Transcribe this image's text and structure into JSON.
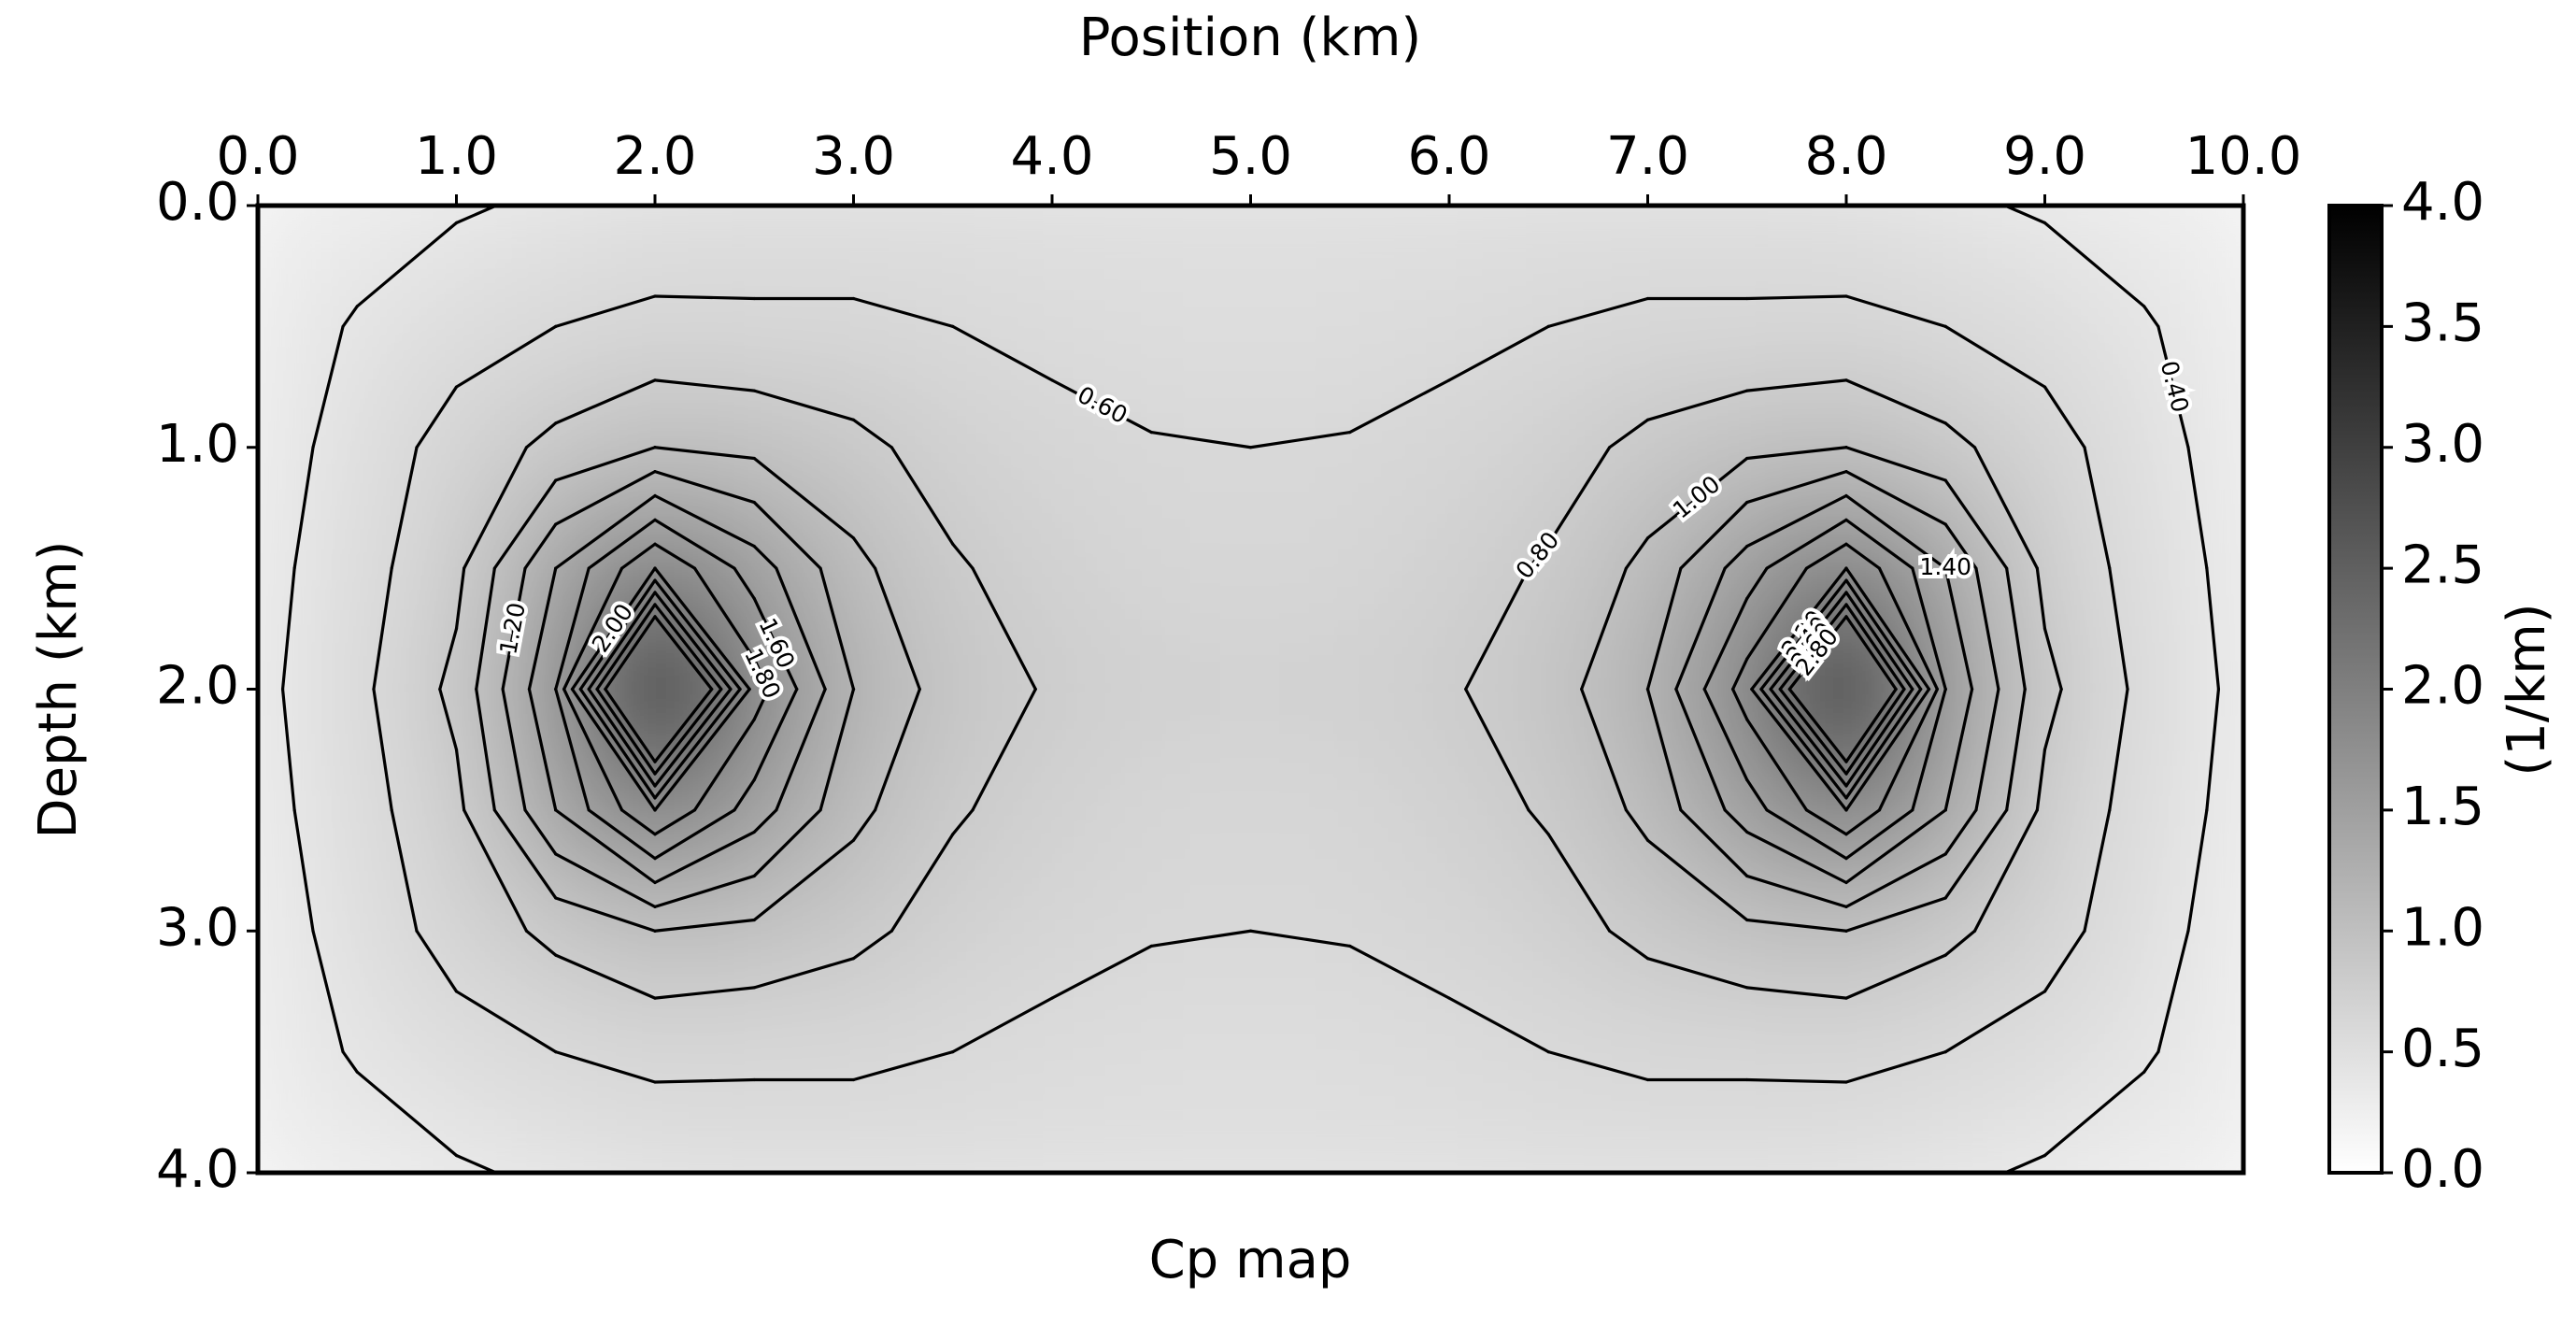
{
  "chart_data": {
    "type": "contour",
    "title": "Cp map",
    "xlabel": "Position (km)",
    "ylabel": "Depth (km)",
    "colorbar_label": "(1/km)",
    "x": [
      0,
      0.5,
      1,
      1.5,
      2,
      2.5,
      3,
      3.5,
      4,
      4.5,
      5,
      5.5,
      6,
      6.5,
      7,
      7.5,
      8,
      8.5,
      9,
      9.5,
      10
    ],
    "y": [
      0,
      0.5,
      1,
      1.5,
      2,
      2.5,
      3,
      3.5,
      4
    ],
    "z": [
      [
        0.22,
        0.3,
        0.38,
        0.43,
        0.48,
        0.5,
        0.5,
        0.5,
        0.49,
        0.48,
        0.48,
        0.48,
        0.49,
        0.5,
        0.5,
        0.5,
        0.48,
        0.43,
        0.38,
        0.3,
        0.22
      ],
      [
        0.28,
        0.42,
        0.52,
        0.6,
        0.64,
        0.63,
        0.63,
        0.6,
        0.56,
        0.53,
        0.52,
        0.53,
        0.56,
        0.6,
        0.63,
        0.63,
        0.64,
        0.6,
        0.52,
        0.42,
        0.28
      ],
      [
        0.3,
        0.48,
        0.68,
        0.85,
        1.0,
        0.95,
        0.85,
        0.72,
        0.65,
        0.61,
        0.6,
        0.61,
        0.65,
        0.72,
        0.85,
        0.95,
        1.0,
        0.85,
        0.68,
        0.48,
        0.3
      ],
      [
        0.33,
        0.52,
        0.75,
        1.4,
        2.0,
        1.5,
        1.05,
        0.82,
        0.72,
        0.65,
        0.62,
        0.65,
        0.72,
        0.82,
        1.05,
        1.5,
        2.0,
        1.4,
        0.75,
        0.52,
        0.33
      ],
      [
        0.35,
        0.55,
        0.85,
        1.6,
        4.0,
        1.9,
        1.2,
        0.9,
        0.78,
        0.72,
        0.7,
        0.72,
        0.78,
        0.9,
        1.2,
        1.9,
        4.0,
        1.6,
        0.85,
        0.55,
        0.35
      ],
      [
        0.33,
        0.52,
        0.75,
        1.4,
        2.0,
        1.5,
        1.05,
        0.82,
        0.72,
        0.65,
        0.62,
        0.65,
        0.72,
        0.82,
        1.05,
        1.5,
        2.0,
        1.4,
        0.75,
        0.52,
        0.33
      ],
      [
        0.3,
        0.48,
        0.68,
        0.85,
        1.0,
        0.95,
        0.85,
        0.72,
        0.65,
        0.61,
        0.6,
        0.61,
        0.65,
        0.72,
        0.85,
        0.95,
        1.0,
        0.85,
        0.68,
        0.48,
        0.3
      ],
      [
        0.28,
        0.42,
        0.52,
        0.6,
        0.64,
        0.63,
        0.63,
        0.6,
        0.56,
        0.53,
        0.52,
        0.53,
        0.56,
        0.6,
        0.63,
        0.63,
        0.64,
        0.6,
        0.52,
        0.42,
        0.28
      ],
      [
        0.22,
        0.3,
        0.38,
        0.43,
        0.48,
        0.5,
        0.5,
        0.5,
        0.49,
        0.48,
        0.48,
        0.48,
        0.49,
        0.5,
        0.5,
        0.5,
        0.48,
        0.43,
        0.38,
        0.3,
        0.22
      ]
    ],
    "xlim": [
      0,
      10
    ],
    "ylim": [
      4,
      0
    ],
    "xticks": [
      {
        "value": 0,
        "label": "0.0"
      },
      {
        "value": 1,
        "label": "1.0"
      },
      {
        "value": 2,
        "label": "2.0"
      },
      {
        "value": 3,
        "label": "3.0"
      },
      {
        "value": 4,
        "label": "4.0"
      },
      {
        "value": 5,
        "label": "5.0"
      },
      {
        "value": 6,
        "label": "6.0"
      },
      {
        "value": 7,
        "label": "7.0"
      },
      {
        "value": 8,
        "label": "8.0"
      },
      {
        "value": 9,
        "label": "9.0"
      },
      {
        "value": 10,
        "label": "10.0"
      }
    ],
    "yticks": [
      {
        "value": 0,
        "label": "0.0"
      },
      {
        "value": 1,
        "label": "1.0"
      },
      {
        "value": 2,
        "label": "2.0"
      },
      {
        "value": 3,
        "label": "3.0"
      },
      {
        "value": 4,
        "label": "4.0"
      }
    ],
    "clim": [
      0,
      4
    ],
    "cticks": [
      {
        "value": 0,
        "label": "0.0"
      },
      {
        "value": 0.5,
        "label": "0.5"
      },
      {
        "value": 1,
        "label": "1.0"
      },
      {
        "value": 1.5,
        "label": "1.5"
      },
      {
        "value": 2,
        "label": "2.0"
      },
      {
        "value": 2.5,
        "label": "2.5"
      },
      {
        "value": 3,
        "label": "3.0"
      },
      {
        "value": 3.5,
        "label": "3.5"
      },
      {
        "value": 4,
        "label": "4.0"
      }
    ],
    "levels": [
      {
        "value": 0.4,
        "label": "0.40"
      },
      {
        "value": 0.6,
        "label": "0.60"
      },
      {
        "value": 0.8,
        "label": "0.80"
      },
      {
        "value": 1.0,
        "label": "1.00"
      },
      {
        "value": 1.2,
        "label": "1.20"
      },
      {
        "value": 1.4,
        "label": "1.40"
      },
      {
        "value": 1.6,
        "label": "1.60"
      },
      {
        "value": 1.8,
        "label": "1.80"
      },
      {
        "value": 2.0,
        "label": "2.00"
      },
      {
        "value": 2.2,
        "label": "2.20"
      },
      {
        "value": 2.4,
        "label": "2.40"
      },
      {
        "value": 2.6,
        "label": "2.60"
      },
      {
        "value": 2.8,
        "label": "2.80"
      }
    ],
    "cmap": [
      "#ffffff",
      "#000000"
    ],
    "line_color": "#000000"
  }
}
